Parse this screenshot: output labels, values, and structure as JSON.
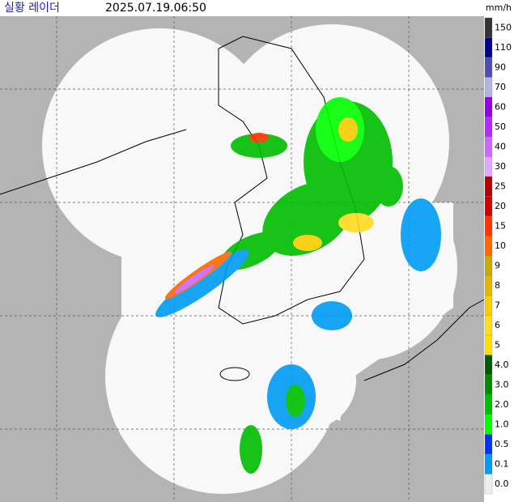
{
  "header": {
    "title": "실황 레이더",
    "time": "2025.07.19.06:50"
  },
  "legend": {
    "unit": "mm/h",
    "items": [
      {
        "label": "150",
        "color": "#333333"
      },
      {
        "label": "110",
        "color": "#000390"
      },
      {
        "label": "90",
        "color": "#4c4eb1"
      },
      {
        "label": "70",
        "color": "#b3b4de"
      },
      {
        "label": "60",
        "color": "#9300e4"
      },
      {
        "label": "50",
        "color": "#b329ff"
      },
      {
        "label": "40",
        "color": "#c969ff"
      },
      {
        "label": "30",
        "color": "#e0a9ff"
      },
      {
        "label": "25",
        "color": "#b40000"
      },
      {
        "label": "20",
        "color": "#d20000"
      },
      {
        "label": "15",
        "color": "#ff3200"
      },
      {
        "label": "10",
        "color": "#ff6600"
      },
      {
        "label": "9",
        "color": "#ccaa00"
      },
      {
        "label": "8",
        "color": "#e0b900"
      },
      {
        "label": "7",
        "color": "#f9cd00"
      },
      {
        "label": "6",
        "color": "#ffdc1f"
      },
      {
        "label": "5",
        "color": "#ffe100"
      },
      {
        "label": "4.0",
        "color": "#005a00"
      },
      {
        "label": "3.0",
        "color": "#008c00"
      },
      {
        "label": "2.0",
        "color": "#00be00"
      },
      {
        "label": "1.0",
        "color": "#00ff00"
      },
      {
        "label": "0.5",
        "color": "#0033f5"
      },
      {
        "label": "0.1",
        "color": "#009bf5"
      },
      {
        "label": "0.0",
        "color": "#eeeeee"
      }
    ]
  }
}
